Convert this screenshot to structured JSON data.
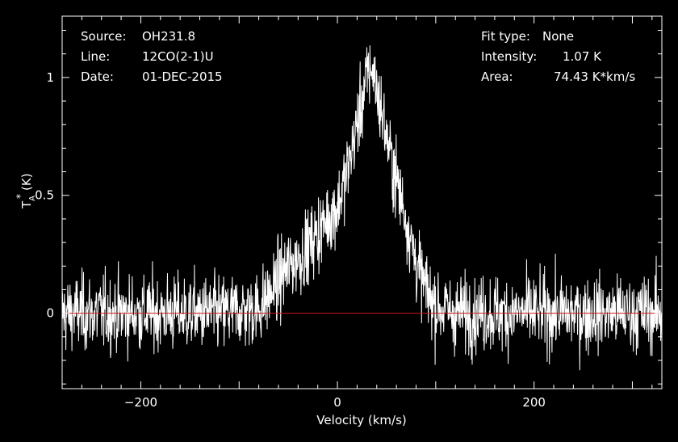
{
  "header_left": {
    "source_label": "Source:",
    "source_value": "OH231.8",
    "line_label": "Line:",
    "line_value": "12CO(2-1)U",
    "date_label": "Date:",
    "date_value": "01-DEC-2015"
  },
  "header_right": {
    "fit_label": "Fit type:",
    "fit_value": "None",
    "intensity_label": "Intensity:",
    "intensity_value": "1.07 K",
    "area_label": "Area:",
    "area_value": "74.43 K*km/s"
  },
  "chart_data": {
    "type": "line",
    "xlabel": "Velocity (km/s)",
    "ylabel_main": "T",
    "ylabel_sub": "A",
    "ylabel_sup": "*",
    "ylabel_unit": "(K)",
    "xlim": [
      -280,
      330
    ],
    "ylim": [
      -0.32,
      1.26
    ],
    "x_ticks": [
      -200,
      0,
      200
    ],
    "x_tick_labels": [
      "−200",
      "0",
      "200"
    ],
    "y_ticks": [
      0,
      0.5,
      1
    ],
    "y_tick_labels": [
      "0",
      "0.5",
      "1"
    ],
    "baseline_value": 0,
    "series": [
      {
        "profile_velocity": [
          -280,
          -120,
          -80,
          -65,
          -55,
          -30,
          -10,
          0,
          10,
          20,
          30,
          35,
          40,
          45,
          55,
          70,
          80,
          90,
          100,
          120,
          160,
          330
        ],
        "profile_mean_TA": [
          0.0,
          0.0,
          0.02,
          0.1,
          0.17,
          0.28,
          0.4,
          0.45,
          0.6,
          0.8,
          1.0,
          1.05,
          0.95,
          0.85,
          0.65,
          0.4,
          0.22,
          0.1,
          0.03,
          0.0,
          0.0,
          0.0
        ],
        "noise_rms": 0.08,
        "peak_TA": 1.26,
        "color": "#ffffff"
      }
    ],
    "baseline_color": "#d01818",
    "axis_color": "#ffffff",
    "grid": false
  }
}
